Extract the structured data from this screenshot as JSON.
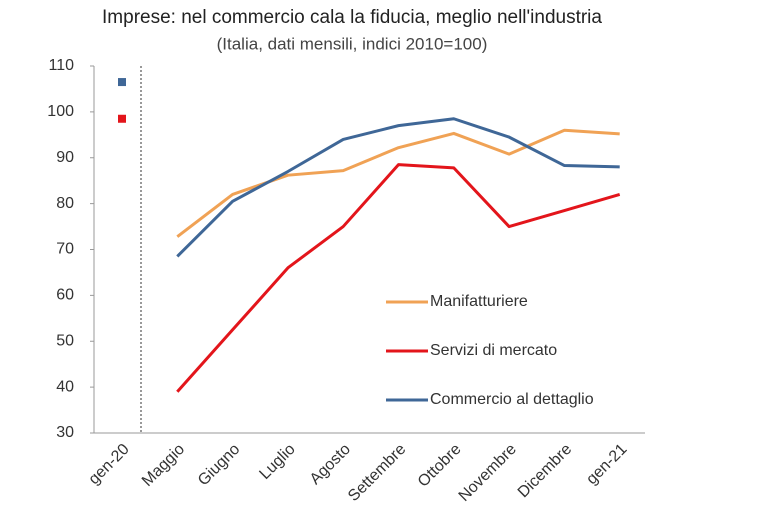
{
  "chart_data": {
    "type": "line",
    "title": "Imprese: nel commercio cala la fiducia, meglio nell'industria",
    "subtitle": "(Italia, dati mensili, indici 2010=100)",
    "categories": [
      "gen-20",
      "Maggio",
      "Giugno",
      "Luglio",
      "Agosto",
      "Settembre",
      "Ottobre",
      "Novembre",
      "Dicembre",
      "gen-21"
    ],
    "series": [
      {
        "name": "Manifatturiere",
        "color": "#f0a255",
        "values": [
          null,
          72.8,
          82,
          86.2,
          87.2,
          92.2,
          95.3,
          90.8,
          96,
          95.2
        ]
      },
      {
        "name": "Servizi di mercato",
        "color": "#e3151b",
        "values": [
          98.5,
          39,
          52.5,
          66,
          75,
          88.5,
          87.8,
          75,
          78.5,
          82
        ]
      },
      {
        "name": "Commercio al dettaglio",
        "color": "#3f6797",
        "values": [
          106.5,
          68.5,
          80.5,
          87,
          94,
          97,
          98.5,
          94.5,
          88.3,
          88
        ]
      }
    ],
    "ylim": [
      30,
      110
    ],
    "yticks": [
      30,
      40,
      50,
      60,
      70,
      80,
      90,
      100,
      110
    ]
  }
}
